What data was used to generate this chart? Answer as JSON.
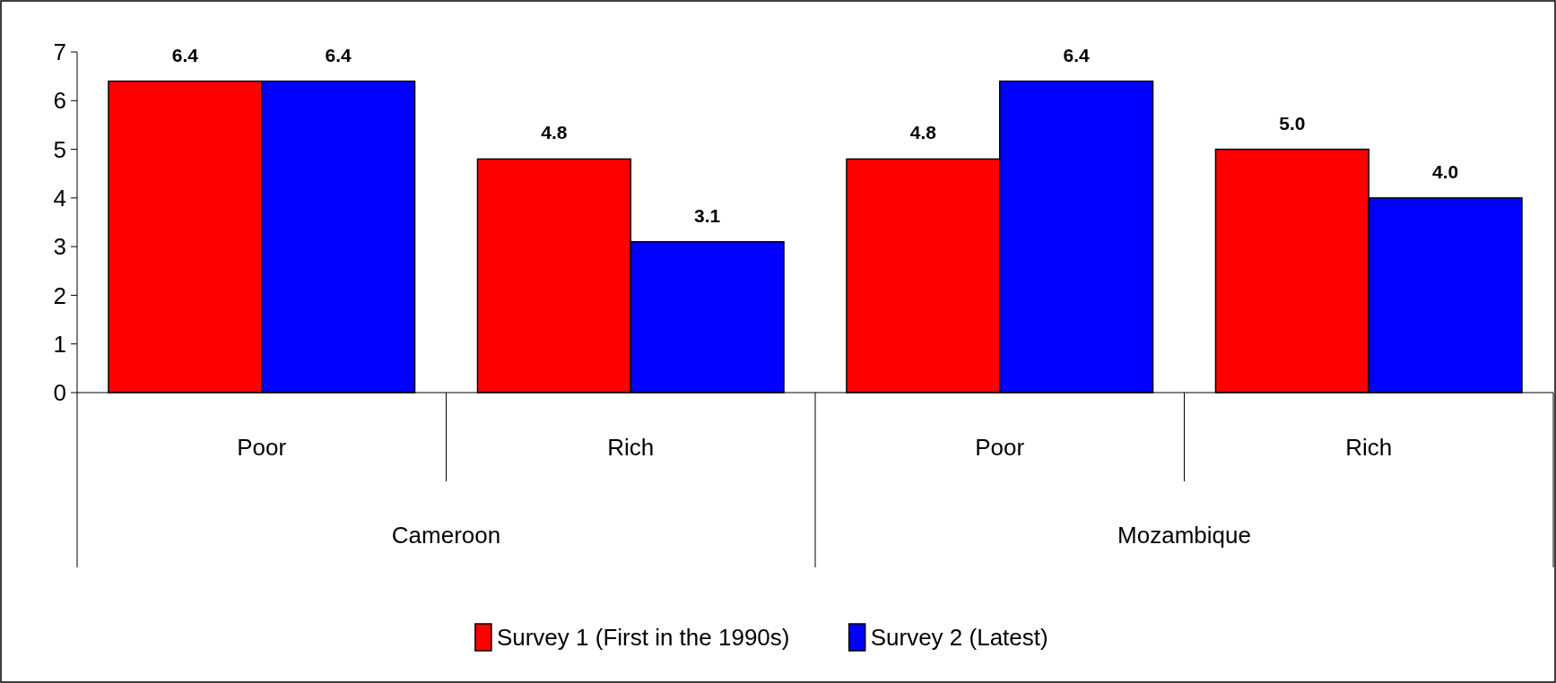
{
  "chart_data": {
    "type": "bar",
    "categories": [
      "Poor",
      "Rich",
      "Poor",
      "Rich"
    ],
    "annotations": [
      "Cameroon",
      "Mozambique"
    ],
    "series": [
      {
        "name": "Survey 1 (First in the 1990s)",
        "color": "#ff0000",
        "values": [
          6.4,
          4.8,
          4.8,
          5.0
        ],
        "value_labels": [
          "6.4",
          "4.8",
          "4.8",
          "5.0"
        ]
      },
      {
        "name": "Survey 2 (Latest)",
        "color": "#0000ff",
        "values": [
          6.4,
          3.1,
          6.4,
          4.0
        ],
        "value_labels": [
          "6.4",
          "3.1",
          "6.4",
          "4.0"
        ]
      }
    ],
    "ylim": [
      0,
      7
    ],
    "yticks": [
      0,
      1,
      2,
      3,
      4,
      5,
      6,
      7
    ],
    "legend": "bottom"
  }
}
